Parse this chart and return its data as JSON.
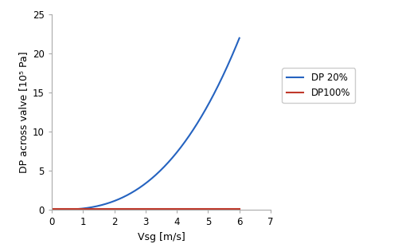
{
  "title": "",
  "xlabel": "Vsg [m/s]",
  "ylabel": "DP across valve [10⁵ Pa]",
  "xlim": [
    0,
    7
  ],
  "ylim": [
    0,
    25
  ],
  "xticks": [
    0,
    1,
    2,
    3,
    4,
    5,
    6,
    7
  ],
  "yticks": [
    0,
    5,
    10,
    15,
    20,
    25
  ],
  "line1_label": "DP 20%",
  "line1_color": "#2563c0",
  "line2_label": "DP100%",
  "line2_color": "#c0392b",
  "x_end": 6.0,
  "dp20_exponent": 2.7,
  "dp20_coeff": 0.107,
  "dp100_value": 0.08,
  "background_color": "#ffffff",
  "legend_fontsize": 8.5,
  "axis_label_fontsize": 9,
  "tick_fontsize": 8.5,
  "line_width": 1.5
}
